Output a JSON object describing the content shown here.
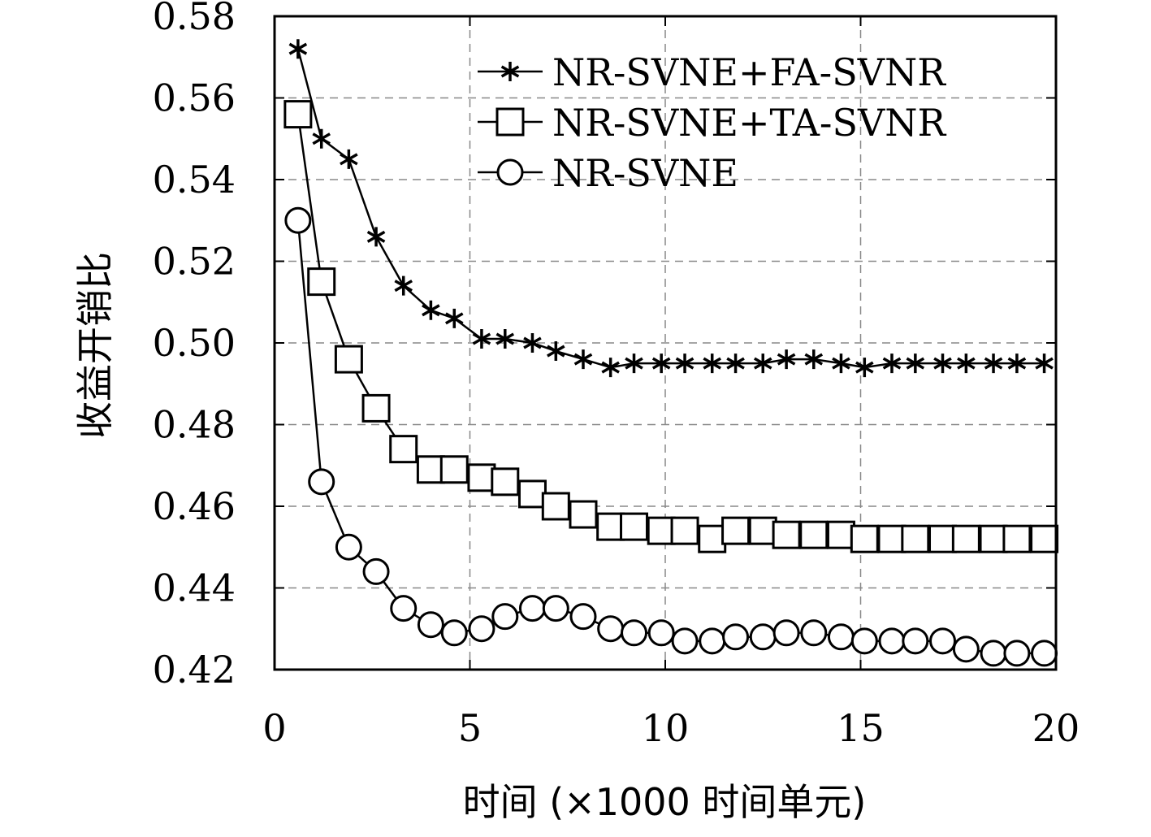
{
  "chart_data": {
    "type": "line",
    "xlabel": "时间 (×1000 时间单元)",
    "ylabel": "收益开销比",
    "xlim": [
      0,
      20
    ],
    "ylim": [
      0.42,
      0.58
    ],
    "xticks": [
      "0",
      "5",
      "10",
      "15",
      "20"
    ],
    "yticks": [
      "0.42",
      "0.44",
      "0.46",
      "0.48",
      "0.50",
      "0.52",
      "0.54",
      "0.56",
      "0.58"
    ],
    "grid": true,
    "legend_position": "top-right",
    "series": [
      {
        "name": "NR-SVNE+FA-SVNR",
        "marker": "star",
        "x": [
          0.6,
          1.2,
          1.9,
          2.6,
          3.3,
          4.0,
          4.6,
          5.3,
          5.9,
          6.6,
          7.2,
          7.9,
          8.6,
          9.2,
          9.9,
          10.5,
          11.2,
          11.8,
          12.5,
          13.1,
          13.8,
          14.5,
          15.1,
          15.8,
          16.4,
          17.1,
          17.7,
          18.4,
          19.0,
          19.7
        ],
        "y": [
          0.572,
          0.55,
          0.545,
          0.526,
          0.514,
          0.508,
          0.506,
          0.501,
          0.501,
          0.5,
          0.498,
          0.496,
          0.494,
          0.495,
          0.495,
          0.495,
          0.495,
          0.495,
          0.495,
          0.496,
          0.496,
          0.495,
          0.494,
          0.495,
          0.495,
          0.495,
          0.495,
          0.495,
          0.495,
          0.495
        ]
      },
      {
        "name": "NR-SVNE+TA-SVNR",
        "marker": "square",
        "x": [
          0.6,
          1.2,
          1.9,
          2.6,
          3.3,
          4.0,
          4.6,
          5.3,
          5.9,
          6.6,
          7.2,
          7.9,
          8.6,
          9.2,
          9.9,
          10.5,
          11.2,
          11.8,
          12.5,
          13.1,
          13.8,
          14.5,
          15.1,
          15.8,
          16.4,
          17.1,
          17.7,
          18.4,
          19.0,
          19.7
        ],
        "y": [
          0.556,
          0.515,
          0.496,
          0.484,
          0.474,
          0.469,
          0.469,
          0.467,
          0.466,
          0.463,
          0.46,
          0.458,
          0.455,
          0.455,
          0.454,
          0.454,
          0.452,
          0.454,
          0.454,
          0.453,
          0.453,
          0.453,
          0.452,
          0.452,
          0.452,
          0.452,
          0.452,
          0.452,
          0.452,
          0.452
        ]
      },
      {
        "name": "NR-SVNE",
        "marker": "circle",
        "x": [
          0.6,
          1.2,
          1.9,
          2.6,
          3.3,
          4.0,
          4.6,
          5.3,
          5.9,
          6.6,
          7.2,
          7.9,
          8.6,
          9.2,
          9.9,
          10.5,
          11.2,
          11.8,
          12.5,
          13.1,
          13.8,
          14.5,
          15.1,
          15.8,
          16.4,
          17.1,
          17.7,
          18.4,
          19.0,
          19.7
        ],
        "y": [
          0.53,
          0.466,
          0.45,
          0.444,
          0.435,
          0.431,
          0.429,
          0.43,
          0.433,
          0.435,
          0.435,
          0.433,
          0.43,
          0.429,
          0.429,
          0.427,
          0.427,
          0.428,
          0.428,
          0.429,
          0.429,
          0.428,
          0.427,
          0.427,
          0.427,
          0.427,
          0.425,
          0.424,
          0.424,
          0.424
        ]
      }
    ]
  }
}
